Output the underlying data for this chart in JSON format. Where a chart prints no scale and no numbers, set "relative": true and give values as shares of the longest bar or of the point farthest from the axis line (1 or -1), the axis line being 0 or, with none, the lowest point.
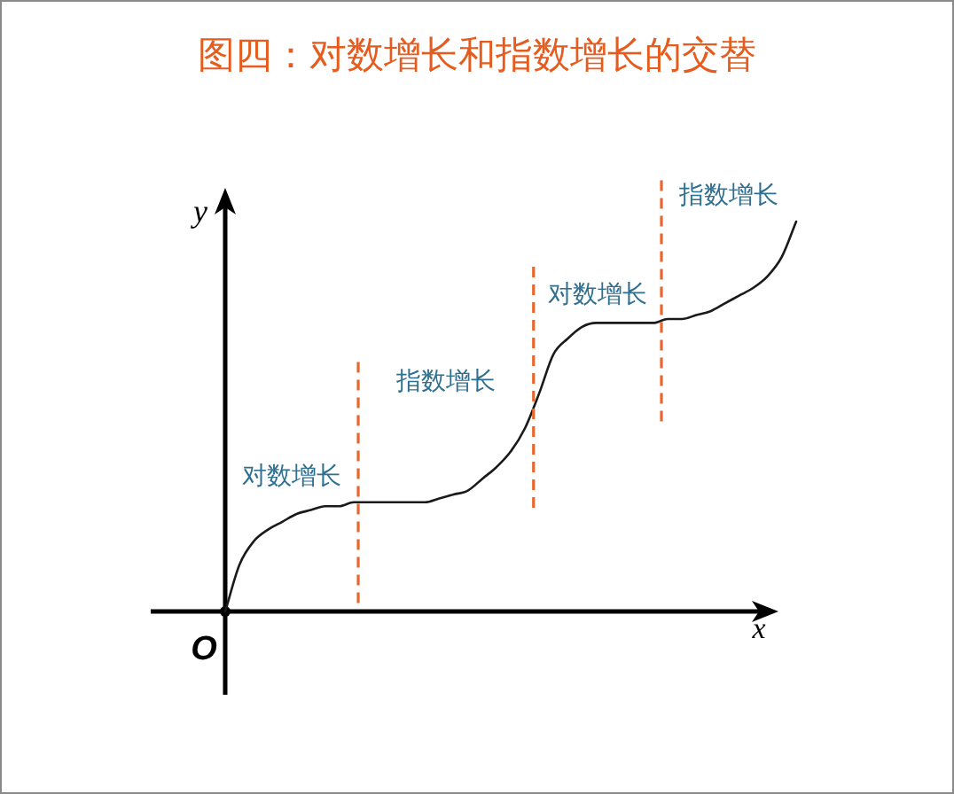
{
  "chart_data": {
    "type": "line",
    "title": "图四：对数增长和指数增长的交替",
    "xlabel": "x",
    "ylabel": "y",
    "relative": true,
    "categories": [
      null,
      null,
      null,
      null,
      null,
      null,
      null,
      null,
      null,
      null,
      null,
      null,
      null,
      null,
      null,
      null,
      null,
      null,
      null,
      null,
      null,
      null,
      null,
      null,
      null,
      null,
      null,
      null,
      null,
      null,
      null,
      null,
      null,
      null,
      null,
      null,
      null,
      null,
      null,
      null,
      null
    ],
    "series": [
      {
        "color": "#1a1a1a",
        "values": [
          0,
          0.12,
          0.18,
          0.21,
          0.23,
          0.25,
          0.26,
          0.27,
          0.27,
          0.28,
          0.28,
          0.28,
          0.28,
          0.28,
          0.28,
          0.29,
          0.3,
          0.31,
          0.34,
          0.37,
          0.41,
          0.47,
          0.56,
          0.66,
          0.7,
          0.73,
          0.74,
          0.74,
          0.74,
          0.74,
          0.74,
          0.75,
          0.75,
          0.76,
          0.77,
          0.79,
          0.81,
          0.83,
          0.86,
          0.91,
          1.0
        ]
      }
    ],
    "annotations": [
      "O",
      "对数增长",
      "指数增长",
      "对数增长",
      "指数增长"
    ],
    "line_style": "solid"
  }
}
